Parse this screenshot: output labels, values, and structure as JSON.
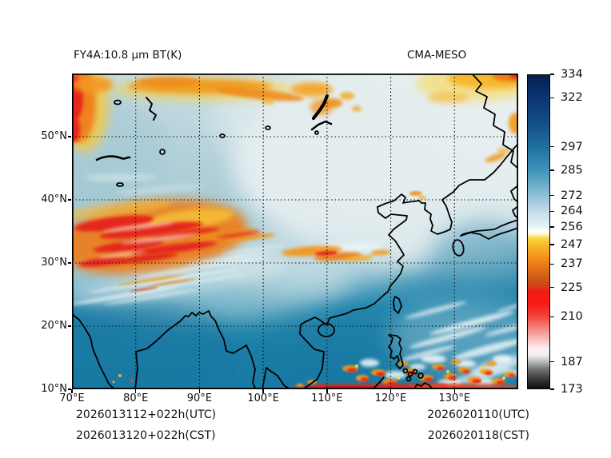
{
  "header": {
    "title_left": "FY4A:10.8 μm BT(K)",
    "title_right": "CMA-MESO"
  },
  "footer": {
    "left": [
      "2026013112+022h(UTC)",
      "2026013120+022h(CST)"
    ],
    "right": [
      "2026020110(UTC)",
      "2026020118(CST)"
    ]
  },
  "chart_data": {
    "type": "heatmap",
    "title": "FY4A:10.8 μm BT(K)",
    "model": "CMA-MESO",
    "variable": "simulated 10.8 micron infrared brightness temperature",
    "units": "K",
    "init_label_utc": "2026013112+022h(UTC)",
    "init_label_cst": "2026013120+022h(CST)",
    "valid_label_utc": "2026020110(UTC)",
    "valid_label_cst": "2026020118(CST)",
    "x_axis": {
      "range": [
        70,
        140
      ],
      "tick_values": [
        70,
        80,
        90,
        100,
        110,
        120,
        130
      ],
      "tick_labels": [
        "70°E",
        "80°E",
        "90°E",
        "100°E",
        "110°E",
        "120°E",
        "130°E"
      ]
    },
    "y_axis": {
      "range": [
        10,
        60
      ],
      "tick_values": [
        10,
        20,
        30,
        40,
        50
      ],
      "tick_labels": [
        "10°N",
        "20°N",
        "30°N",
        "40°N",
        "50°N"
      ]
    },
    "grid": "dotted",
    "colorbar": {
      "min": 173,
      "max": 334,
      "ticks": [
        334,
        322,
        297,
        285,
        272,
        264,
        256,
        247,
        237,
        225,
        210,
        187,
        173
      ],
      "stops": [
        [
          0.0,
          "#0d0d0d"
        ],
        [
          0.031,
          "#3a3a3a"
        ],
        [
          0.062,
          "#757575"
        ],
        [
          0.087,
          "#bdbdbd"
        ],
        [
          0.105,
          "#efecea"
        ],
        [
          0.125,
          "#fdf2f1"
        ],
        [
          0.155,
          "#f8c2bf"
        ],
        [
          0.193,
          "#f4837d"
        ],
        [
          0.23,
          "#f2453b"
        ],
        [
          0.27,
          "#f61b15"
        ],
        [
          0.311,
          "#ef1c10"
        ],
        [
          0.323,
          "#d93b16"
        ],
        [
          0.34,
          "#c94f1b"
        ],
        [
          0.398,
          "#ee7d15"
        ],
        [
          0.435,
          "#f6a321"
        ],
        [
          0.46,
          "#f7bb2c"
        ],
        [
          0.478,
          "#f8d73c"
        ],
        [
          0.492,
          "#fdf6c8"
        ],
        [
          0.503,
          "#ffffff"
        ],
        [
          0.516,
          "#e9f2f6"
        ],
        [
          0.565,
          "#c4dde9"
        ],
        [
          0.615,
          "#8fc1d6"
        ],
        [
          0.696,
          "#3f94b9"
        ],
        [
          0.77,
          "#20709f"
        ],
        [
          0.85,
          "#144d87"
        ],
        [
          0.925,
          "#0b3673"
        ],
        [
          1.0,
          "#071f4f"
        ]
      ]
    },
    "features": [
      "deep tropical convection (BT 180-230 K, red/orange/white) near the Philippines, 10-15N 110-140E, with bright red band along 10N",
      "large cold cloud shield (BT 220-247 K, red-orange streaks) over the Pamir/Tibetan Plateau region, 33-43N 70-95E",
      "orange cold-cloud patches along the northern edge (55-60N), near Lake Baikal and in the NW and NE corners",
      "white jet-stream cirrus streaks trailing ENE across 25-32N, 70-105E and over the western Pacific 20-30N",
      "pale near-white cold winter land surface (BT ~250-260 K) over Mongolia, NE China and eastern Siberia",
      "clear warm ocean (BT 285-297 K, teal blue) over Bay of Bengal, South China Sea and western Pacific"
    ]
  }
}
